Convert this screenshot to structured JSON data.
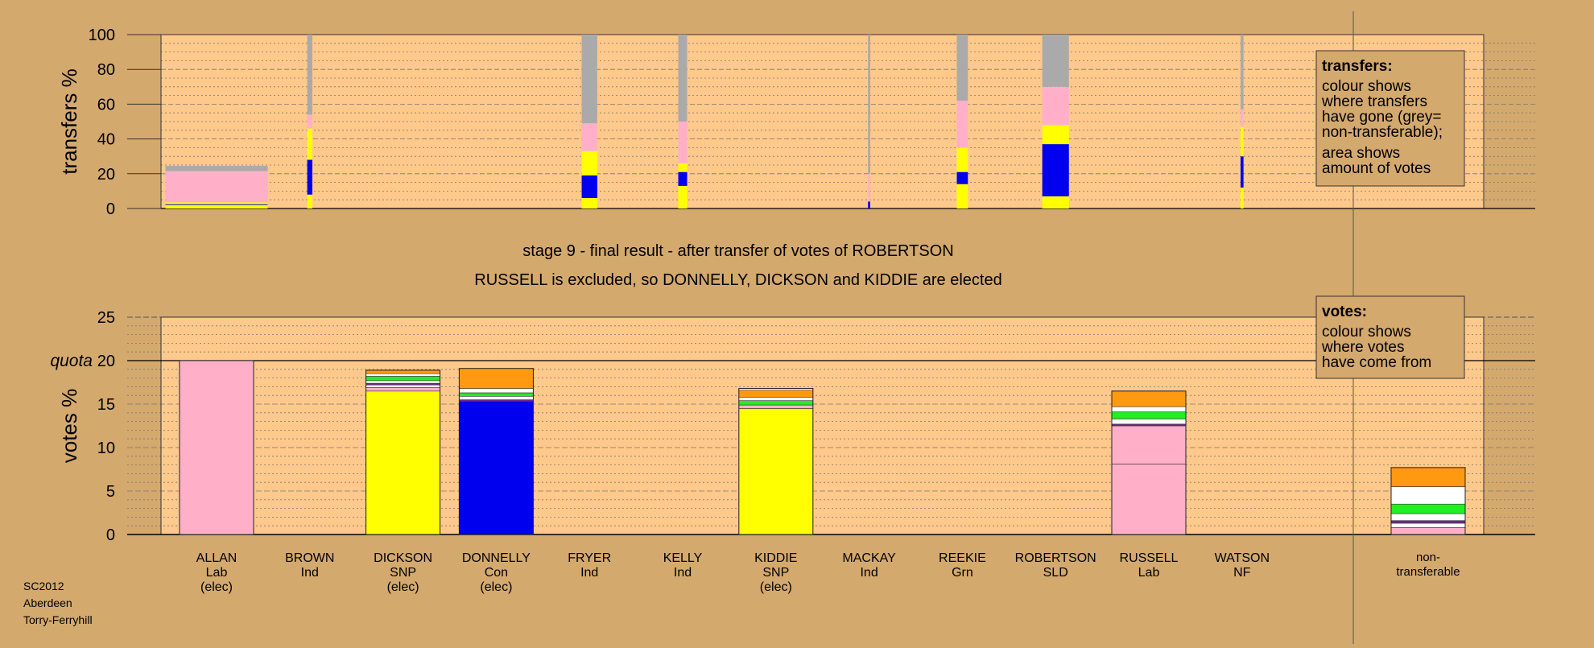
{
  "page": {
    "footer": [
      "SC2012",
      "Aberdeen",
      "Torry-Ferryhill"
    ],
    "heading_line1": "stage 9 - final result - after transfer of votes of ROBERTSON",
    "heading_line2": "RUSSELL is excluded, so DONNELLY, DICKSON and KIDDIE are elected"
  },
  "colors": {
    "background": "#d4a96e",
    "plot_bg": "#ffc98b",
    "Lab": "#ffb0c8",
    "SNP": "#ffff00",
    "Con": "#0000ee",
    "Grn": "#22ee22",
    "SLD": "#ff9911",
    "Ind": "#ffffff",
    "NF": "#6b2a8b",
    "nontransferable": "#aaaaaa"
  },
  "legends": {
    "transfers": {
      "title": "transfers:",
      "lines": [
        "colour shows",
        "where transfers",
        "have gone (grey=",
        "non-transferable);",
        "area shows",
        "amount of votes"
      ]
    },
    "votes": {
      "title": "votes:",
      "lines": [
        "colour shows",
        "where votes",
        "have come from"
      ]
    }
  },
  "chart_data": [
    {
      "type": "bar",
      "name": "transfers",
      "ylabel": "transfers %",
      "ylim": [
        0,
        100
      ],
      "yticks": [
        0,
        20,
        40,
        60,
        80,
        100
      ],
      "grid": true,
      "categories": [
        "ALLAN",
        "BROWN",
        "DICKSON",
        "DONNELLY",
        "FRYER",
        "KELLY",
        "KIDDIE",
        "MACKAY",
        "REEKIE",
        "ROBERTSON",
        "RUSSELL",
        "WATSON"
      ],
      "relative_width": [
        13.8,
        0.7,
        0,
        0,
        2.1,
        1.2,
        0,
        0.3,
        1.5,
        3.6,
        0,
        0.4
      ],
      "stacks": [
        [
          [
            "SNP",
            2
          ],
          [
            "Con",
            0.5
          ],
          [
            "SNP",
            1
          ],
          [
            "Lab",
            18
          ],
          [
            "nontransferable",
            3
          ]
        ],
        [
          [
            "SNP",
            8
          ],
          [
            "Con",
            20
          ],
          [
            "SNP",
            18
          ],
          [
            "Lab",
            8
          ],
          [
            "nontransferable",
            46
          ]
        ],
        [],
        [],
        [
          [
            "SNP",
            6
          ],
          [
            "Con",
            13
          ],
          [
            "SNP",
            14
          ],
          [
            "Lab",
            16
          ],
          [
            "nontransferable",
            51
          ]
        ],
        [
          [
            "SNP",
            13
          ],
          [
            "Con",
            8
          ],
          [
            "SNP",
            5
          ],
          [
            "Lab",
            24
          ],
          [
            "nontransferable",
            50
          ]
        ],
        [],
        [
          [
            "Con",
            4
          ],
          [
            "Lab",
            16
          ],
          [
            "nontransferable",
            80
          ]
        ],
        [
          [
            "SNP",
            14
          ],
          [
            "Con",
            7
          ],
          [
            "SNP",
            14
          ],
          [
            "Lab",
            27
          ],
          [
            "nontransferable",
            38
          ]
        ],
        [
          [
            "SNP",
            7
          ],
          [
            "Con",
            30
          ],
          [
            "SNP",
            11
          ],
          [
            "Lab",
            22
          ],
          [
            "nontransferable",
            30
          ]
        ],
        [],
        [
          [
            "SNP",
            12
          ],
          [
            "Con",
            18
          ],
          [
            "SNP",
            17
          ],
          [
            "Lab",
            10
          ],
          [
            "nontransferable",
            43
          ]
        ]
      ]
    },
    {
      "type": "bar",
      "name": "votes",
      "ylabel": "votes %",
      "ylim": [
        0,
        25
      ],
      "yticks": [
        0,
        5,
        10,
        15,
        20,
        25
      ],
      "quota_label": "quota",
      "quota": 20,
      "grid": true,
      "categories": [
        {
          "name": "ALLAN",
          "party": "Lab",
          "status": "(elec)"
        },
        {
          "name": "BROWN",
          "party": "Ind",
          "status": ""
        },
        {
          "name": "DICKSON",
          "party": "SNP",
          "status": "(elec)"
        },
        {
          "name": "DONNELLY",
          "party": "Con",
          "status": "(elec)"
        },
        {
          "name": "FRYER",
          "party": "Ind",
          "status": ""
        },
        {
          "name": "KELLY",
          "party": "Ind",
          "status": ""
        },
        {
          "name": "KIDDIE",
          "party": "SNP",
          "status": "(elec)"
        },
        {
          "name": "MACKAY",
          "party": "Ind",
          "status": ""
        },
        {
          "name": "REEKIE",
          "party": "Grn",
          "status": ""
        },
        {
          "name": "ROBERTSON",
          "party": "SLD",
          "status": ""
        },
        {
          "name": "RUSSELL",
          "party": "Lab",
          "status": ""
        },
        {
          "name": "WATSON",
          "party": "NF",
          "status": ""
        }
      ],
      "nontransferable_label": [
        "non-",
        "transferable"
      ],
      "stacks": [
        [
          [
            "Lab",
            20.0
          ]
        ],
        [],
        [
          [
            "SNP",
            16.5
          ],
          [
            "Lab",
            0.4
          ],
          [
            "Ind",
            0.3
          ],
          [
            "NF",
            0.2
          ],
          [
            "Ind",
            0.3
          ],
          [
            "Grn",
            0.5
          ],
          [
            "Ind",
            0.3
          ],
          [
            "SLD",
            0.4
          ]
        ],
        [
          [
            "Con",
            15.3
          ],
          [
            "NF",
            0.2
          ],
          [
            "Ind",
            0.4
          ],
          [
            "Grn",
            0.4
          ],
          [
            "Ind",
            0.5
          ],
          [
            "SLD",
            2.3
          ]
        ],
        [],
        [],
        [
          [
            "SNP",
            14.5
          ],
          [
            "Lab",
            0.4
          ],
          [
            "Grn",
            0.5
          ],
          [
            "Ind",
            0.4
          ],
          [
            "SLD",
            0.8
          ],
          [
            "Ind",
            0.2
          ]
        ],
        [],
        [],
        [],
        [
          [
            "Lab",
            8.1
          ],
          [
            "Lab",
            4.4
          ],
          [
            "NF",
            0.2
          ],
          [
            "Ind",
            0.6
          ],
          [
            "Grn",
            0.8
          ],
          [
            "Ind",
            0.6
          ],
          [
            "SLD",
            1.8
          ]
        ],
        []
      ],
      "nontransferable_stack": [
        [
          "Lab",
          0.8
        ],
        [
          "Ind",
          0.5
        ],
        [
          "NF",
          0.3
        ],
        [
          "Ind",
          0.8
        ],
        [
          "Grn",
          1.1
        ],
        [
          "Ind",
          2.0
        ],
        [
          "SLD",
          2.2
        ]
      ]
    }
  ]
}
